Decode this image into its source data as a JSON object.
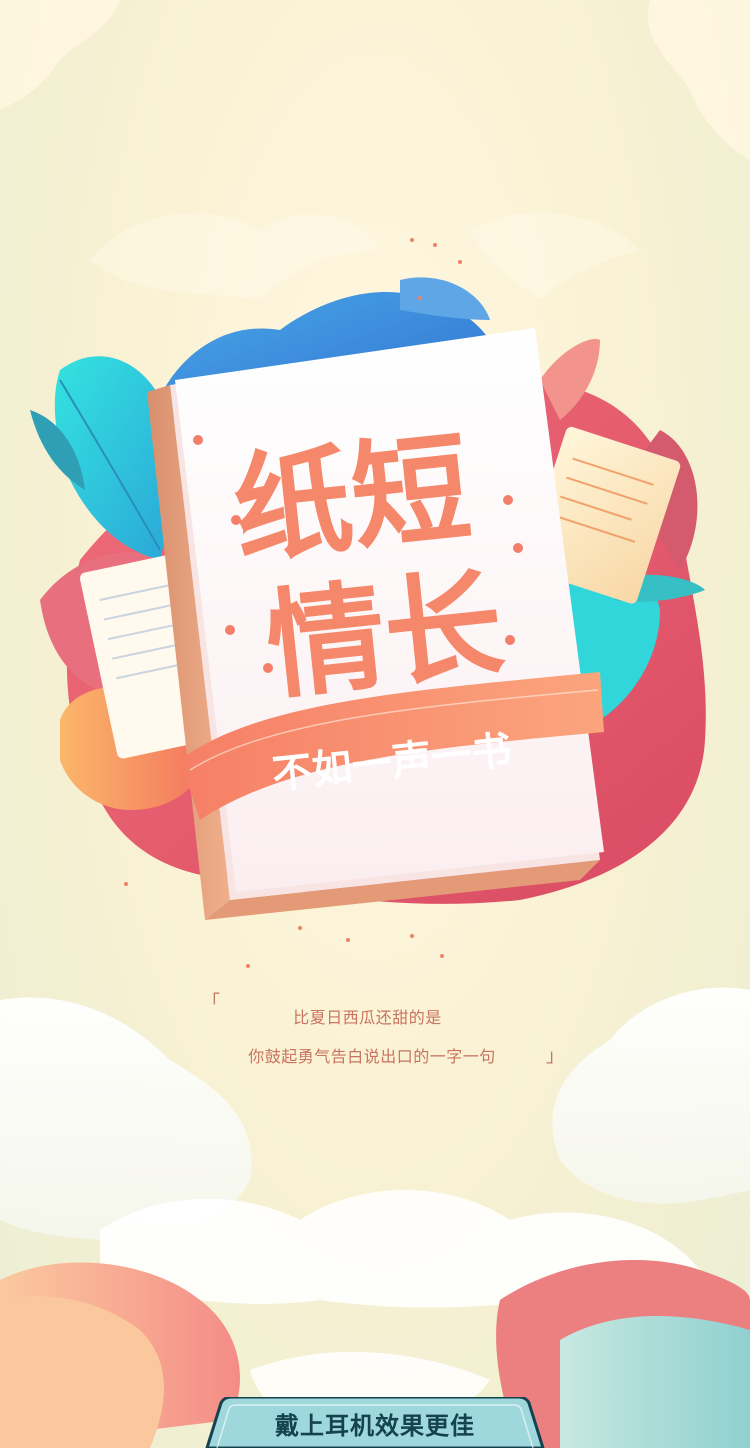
{
  "book": {
    "title_line1": "纸短",
    "title_line2": "情长",
    "ribbon_text": "不如一声一书"
  },
  "quote": {
    "open_mark": "「",
    "line1": "比夏日西瓜还甜的是",
    "line2": "你鼓起勇气告白说出口的一字一句",
    "close_mark": "」"
  },
  "footer": {
    "headphone_hint": "戴上耳机效果更佳"
  },
  "colors": {
    "title_coral": "#f5876a",
    "ribbon": "#f48a6a",
    "accent_teal": "#2bc9d2",
    "cloud_pink": "#e8757d",
    "tab_bg": "#9fd8dc",
    "tab_border": "#14424f"
  }
}
